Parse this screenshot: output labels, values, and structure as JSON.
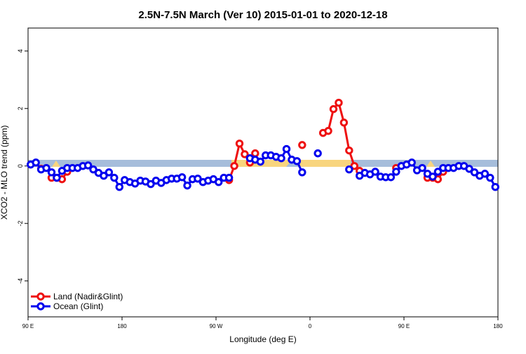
{
  "chart_data": {
    "type": "line",
    "title": "2.5N-7.5N March (Ver 10)   2015-01-01 to 2020-12-18",
    "xlabel": "Longitude (deg E)",
    "ylabel": "XCO2 - MLO trend (ppm)",
    "x": [
      92.5,
      97.5,
      102.5,
      107.5,
      112.5,
      117.5,
      122.5,
      127.5,
      132.5,
      137.5,
      142.5,
      147.5,
      152.5,
      157.5,
      162.5,
      167.5,
      172.5,
      177.5,
      182.5,
      187.5,
      192.5,
      197.5,
      202.5,
      207.5,
      212.5,
      217.5,
      222.5,
      227.5,
      232.5,
      237.5,
      242.5,
      247.5,
      252.5,
      257.5,
      262.5,
      267.5,
      272.5,
      277.5,
      282.5,
      287.5,
      292.5,
      297.5,
      302.5,
      307.5,
      312.5,
      317.5,
      322.5,
      327.5,
      332.5,
      337.5,
      342.5,
      347.5,
      352.5,
      357.5,
      362.5,
      367.5,
      372.5,
      377.5,
      382.5,
      387.5,
      392.5,
      397.5,
      402.5,
      407.5,
      412.5,
      417.5,
      422.5,
      427.5,
      432.5,
      437.5,
      442.5,
      447.5,
      452.5,
      457.5,
      462.5,
      467.5,
      472.5,
      477.5,
      482.5,
      487.5,
      492.5,
      497.5,
      502.5,
      507.5,
      512.5,
      517.5,
      522.5,
      527.5,
      532.5,
      537.5
    ],
    "series": [
      {
        "name": "Land (Nadir&Glint)",
        "color": "#ee1111",
        "values": [
          null,
          null,
          -0.1,
          null,
          -0.41,
          -0.41,
          -0.46,
          -0.2,
          null,
          null,
          null,
          null,
          null,
          null,
          null,
          null,
          null,
          null,
          null,
          null,
          null,
          null,
          null,
          null,
          null,
          null,
          null,
          null,
          null,
          null,
          null,
          null,
          null,
          null,
          null,
          null,
          null,
          null,
          -0.49,
          0,
          0.78,
          0.41,
          0.12,
          0.44,
          null,
          null,
          null,
          null,
          null,
          null,
          null,
          null,
          0.73,
          null,
          null,
          null,
          1.15,
          1.22,
          1.98,
          2.2,
          1.51,
          0.54,
          0,
          -0.17,
          null,
          null,
          null,
          null,
          null,
          null,
          -0.07,
          null,
          null,
          null,
          null,
          null,
          -0.41,
          -0.41,
          -0.46,
          -0.2,
          null,
          null,
          null,
          null,
          null,
          null,
          null,
          null,
          null,
          null
        ]
      },
      {
        "name": "Ocean (Glint)",
        "color": "#0000ee",
        "values": [
          0.05,
          0.12,
          -0.12,
          -0.07,
          -0.22,
          -0.41,
          -0.17,
          -0.07,
          -0.07,
          -0.07,
          0,
          0.02,
          -0.12,
          -0.24,
          -0.34,
          -0.22,
          -0.41,
          -0.73,
          -0.49,
          -0.56,
          -0.61,
          -0.51,
          -0.54,
          -0.63,
          -0.51,
          -0.59,
          -0.49,
          -0.44,
          -0.44,
          -0.39,
          -0.68,
          -0.46,
          -0.44,
          -0.56,
          -0.51,
          -0.46,
          -0.56,
          -0.41,
          -0.41,
          null,
          null,
          null,
          0.27,
          0.22,
          0.15,
          0.37,
          0.37,
          0.32,
          0.27,
          0.59,
          0.22,
          0.17,
          -0.22,
          null,
          null,
          0.44,
          null,
          null,
          null,
          null,
          null,
          -0.12,
          null,
          -0.34,
          -0.24,
          -0.29,
          -0.2,
          -0.37,
          -0.39,
          -0.39,
          -0.2,
          0,
          0.05,
          0.12,
          -0.15,
          -0.07,
          -0.27,
          -0.37,
          -0.2,
          -0.07,
          -0.07,
          -0.07,
          0,
          0,
          -0.1,
          -0.22,
          -0.34,
          -0.27,
          -0.41,
          -0.73
        ]
      }
    ],
    "xlim": [
      90,
      540
    ],
    "xticks": [
      {
        "value": 90,
        "label": "90 E"
      },
      180,
      {
        "value": 270,
        "label": "90 W"
      },
      {
        "value": 360,
        "label": "0"
      },
      {
        "value": 450,
        "label": "90 E"
      },
      {
        "value": 540,
        "label": "180"
      }
    ],
    "ylim": [
      -5.25,
      4.8
    ],
    "yticks": [
      -4,
      -2,
      0,
      2,
      4
    ],
    "legend": "bottom-left"
  }
}
